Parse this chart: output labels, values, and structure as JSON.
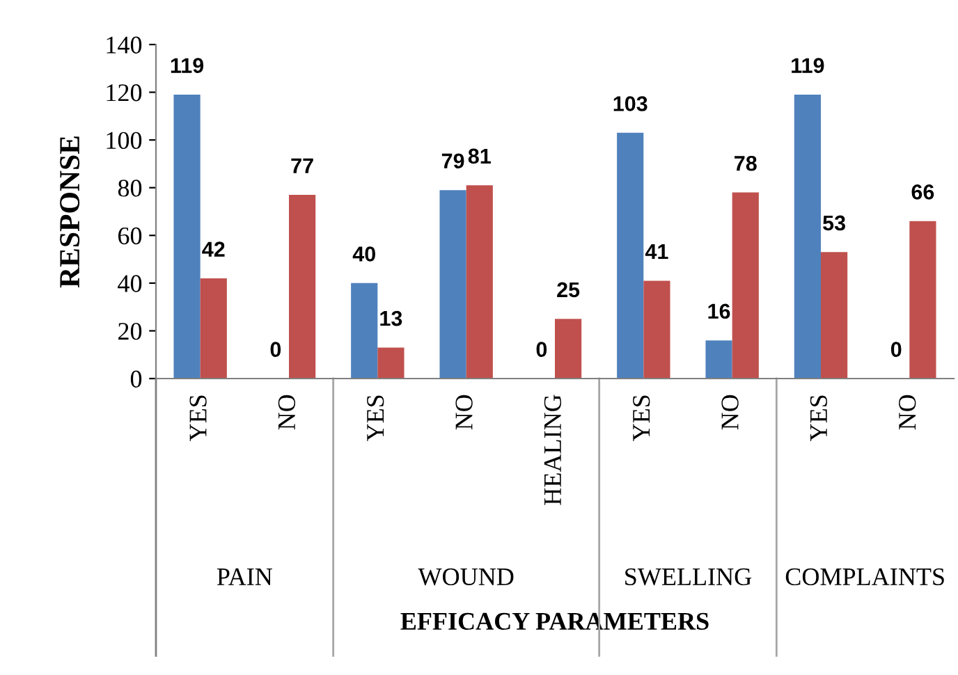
{
  "chart_data": {
    "type": "bar",
    "xlabel": "EFFICACY PARAMETERS",
    "ylabel": "RESPONSE",
    "categories": [
      "YES",
      "NO",
      "YES",
      "NO",
      "HEALING",
      "YES",
      "NO",
      "YES",
      "NO"
    ],
    "series": [
      {
        "color": "#4f81bd",
        "values": [
          119,
          0,
          40,
          79,
          0,
          103,
          16,
          119,
          0
        ]
      },
      {
        "color": "#c0504d",
        "values": [
          42,
          77,
          13,
          81,
          25,
          41,
          78,
          53,
          66
        ]
      }
    ],
    "ylim": [
      0,
      140
    ],
    "yticks": [
      0,
      20,
      40,
      60,
      80,
      100,
      120,
      140
    ],
    "annotations": [
      "PAIN",
      "WOUND",
      "SWELLING",
      "COMPLAINTS"
    ],
    "data_labels": true,
    "grid": false,
    "legend": false
  }
}
